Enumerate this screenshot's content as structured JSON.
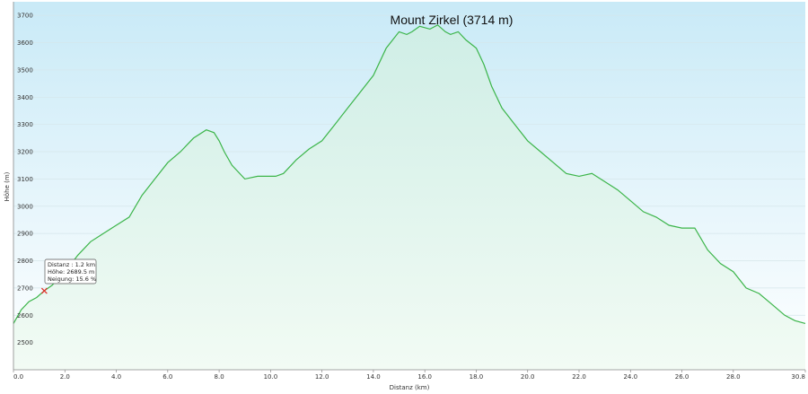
{
  "chart_data": {
    "type": "area",
    "title": "Mount Zirkel (3714 m)",
    "xlabel": "Distanz  (km)",
    "ylabel": "Höhe (m)",
    "xlim": [
      0,
      30.8
    ],
    "ylim": [
      2400,
      3750
    ],
    "x_ticks": [
      "0.0",
      "2.0",
      "4.0",
      "6.0",
      "8.0",
      "10.0",
      "12.0",
      "14.0",
      "16.0",
      "18.0",
      "20.0",
      "22.0",
      "24.0",
      "26.0",
      "28.0",
      "30.8"
    ],
    "y_ticks": [
      "2500",
      "2600",
      "2700",
      "2800",
      "2900",
      "3000",
      "3100",
      "3200",
      "3300",
      "3400",
      "3500",
      "3600",
      "3700"
    ],
    "grid": true,
    "colors": {
      "line": "#3cb54a",
      "fill_top": "#cfeee6",
      "fill_bottom": "#f2fbf4",
      "sky_top": "#c9eaf7",
      "sky_bottom": "#ffffff"
    },
    "series": [
      {
        "x": [
          0.0,
          0.3,
          0.6,
          0.9,
          1.2,
          1.5,
          1.8,
          2.1,
          2.5,
          3.0,
          3.5,
          4.0,
          4.5,
          5.0,
          5.5,
          6.0,
          6.5,
          7.0,
          7.5,
          7.8,
          8.0,
          8.2,
          8.5,
          9.0,
          9.5,
          9.8,
          10.2,
          10.5,
          11.0,
          11.5,
          12.0,
          12.5,
          13.0,
          13.5,
          14.0,
          14.5,
          15.0,
          15.3,
          15.5,
          15.8,
          16.2,
          16.5,
          16.8,
          17.0,
          17.3,
          17.6,
          18.0,
          18.3,
          18.6,
          19.0,
          19.5,
          20.0,
          20.5,
          21.0,
          21.5,
          22.0,
          22.5,
          23.0,
          23.5,
          24.0,
          24.5,
          25.0,
          25.5,
          26.0,
          26.5,
          27.0,
          27.5,
          28.0,
          28.5,
          29.0,
          29.5,
          30.0,
          30.4,
          30.8
        ],
        "values": [
          2570,
          2620,
          2650,
          2665,
          2690,
          2710,
          2740,
          2770,
          2820,
          2870,
          2900,
          2930,
          2960,
          3040,
          3100,
          3160,
          3200,
          3250,
          3280,
          3270,
          3240,
          3200,
          3150,
          3100,
          3110,
          3110,
          3110,
          3120,
          3170,
          3210,
          3240,
          3300,
          3360,
          3420,
          3480,
          3580,
          3640,
          3630,
          3640,
          3660,
          3650,
          3665,
          3640,
          3630,
          3640,
          3610,
          3580,
          3520,
          3440,
          3360,
          3300,
          3240,
          3200,
          3160,
          3120,
          3110,
          3120,
          3090,
          3060,
          3020,
          2980,
          2960,
          2930,
          2920,
          2920,
          2840,
          2790,
          2760,
          2700,
          2680,
          2640,
          2600,
          2580,
          2570
        ]
      }
    ],
    "marker": {
      "x": 1.2,
      "y": 2689.5,
      "label_lines": [
        "Distanz : 1.2 km",
        "Höhe: 2689.5 m",
        "Neigung: 15.6 %"
      ]
    }
  }
}
